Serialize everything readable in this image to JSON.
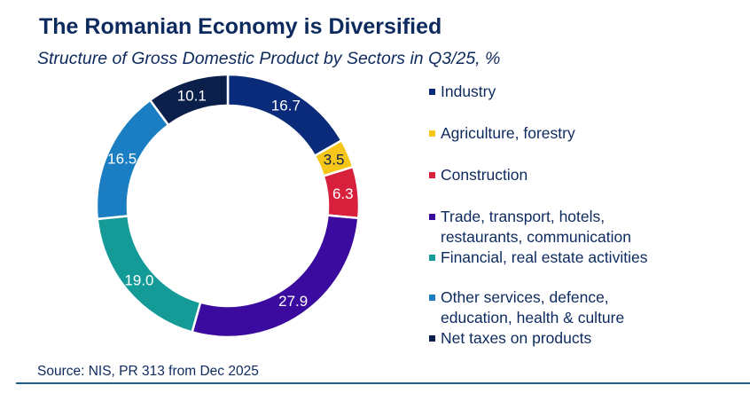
{
  "chart_data": {
    "type": "pie",
    "variant": "donut",
    "title": "The Romanian Economy is Diversified",
    "subtitle": "Structure of Gross Domestic Product by Sectors in Q3/25, %",
    "categories": [
      "Industry",
      "Agriculture, forestry",
      "Construction",
      "Trade, transport, hotels, restaurants, communication",
      "Financial, real estate activities",
      "Other services, defence, education, health & culture",
      "Net taxes on products"
    ],
    "legend_lines": [
      [
        "Industry"
      ],
      [
        "Agriculture, forestry"
      ],
      [
        "Construction"
      ],
      [
        "Trade, transport, hotels,",
        "restaurants, communication"
      ],
      [
        "Financial, real estate activities"
      ],
      [
        "Other services, defence,",
        "education, health & culture"
      ],
      [
        "Net taxes on products"
      ]
    ],
    "values": [
      16.7,
      3.5,
      6.3,
      27.9,
      19.0,
      16.5,
      10.1
    ],
    "value_labels": [
      "16.7",
      "3.5",
      "6.3",
      "27.9",
      "19.0",
      "16.5",
      "10.1"
    ],
    "colors": [
      "#0a2a7a",
      "#f5c518",
      "#d81f3c",
      "#3a0b9e",
      "#149b98",
      "#1b7ec2",
      "#0b1f4b"
    ],
    "label_colors": [
      "#ffffff",
      "#0b1f4b",
      "#ffffff",
      "#ffffff",
      "#ffffff",
      "#ffffff",
      "#ffffff"
    ],
    "legend": "right",
    "unit": "%"
  },
  "source": "Source: NIS, PR 313 from Dec 2025"
}
